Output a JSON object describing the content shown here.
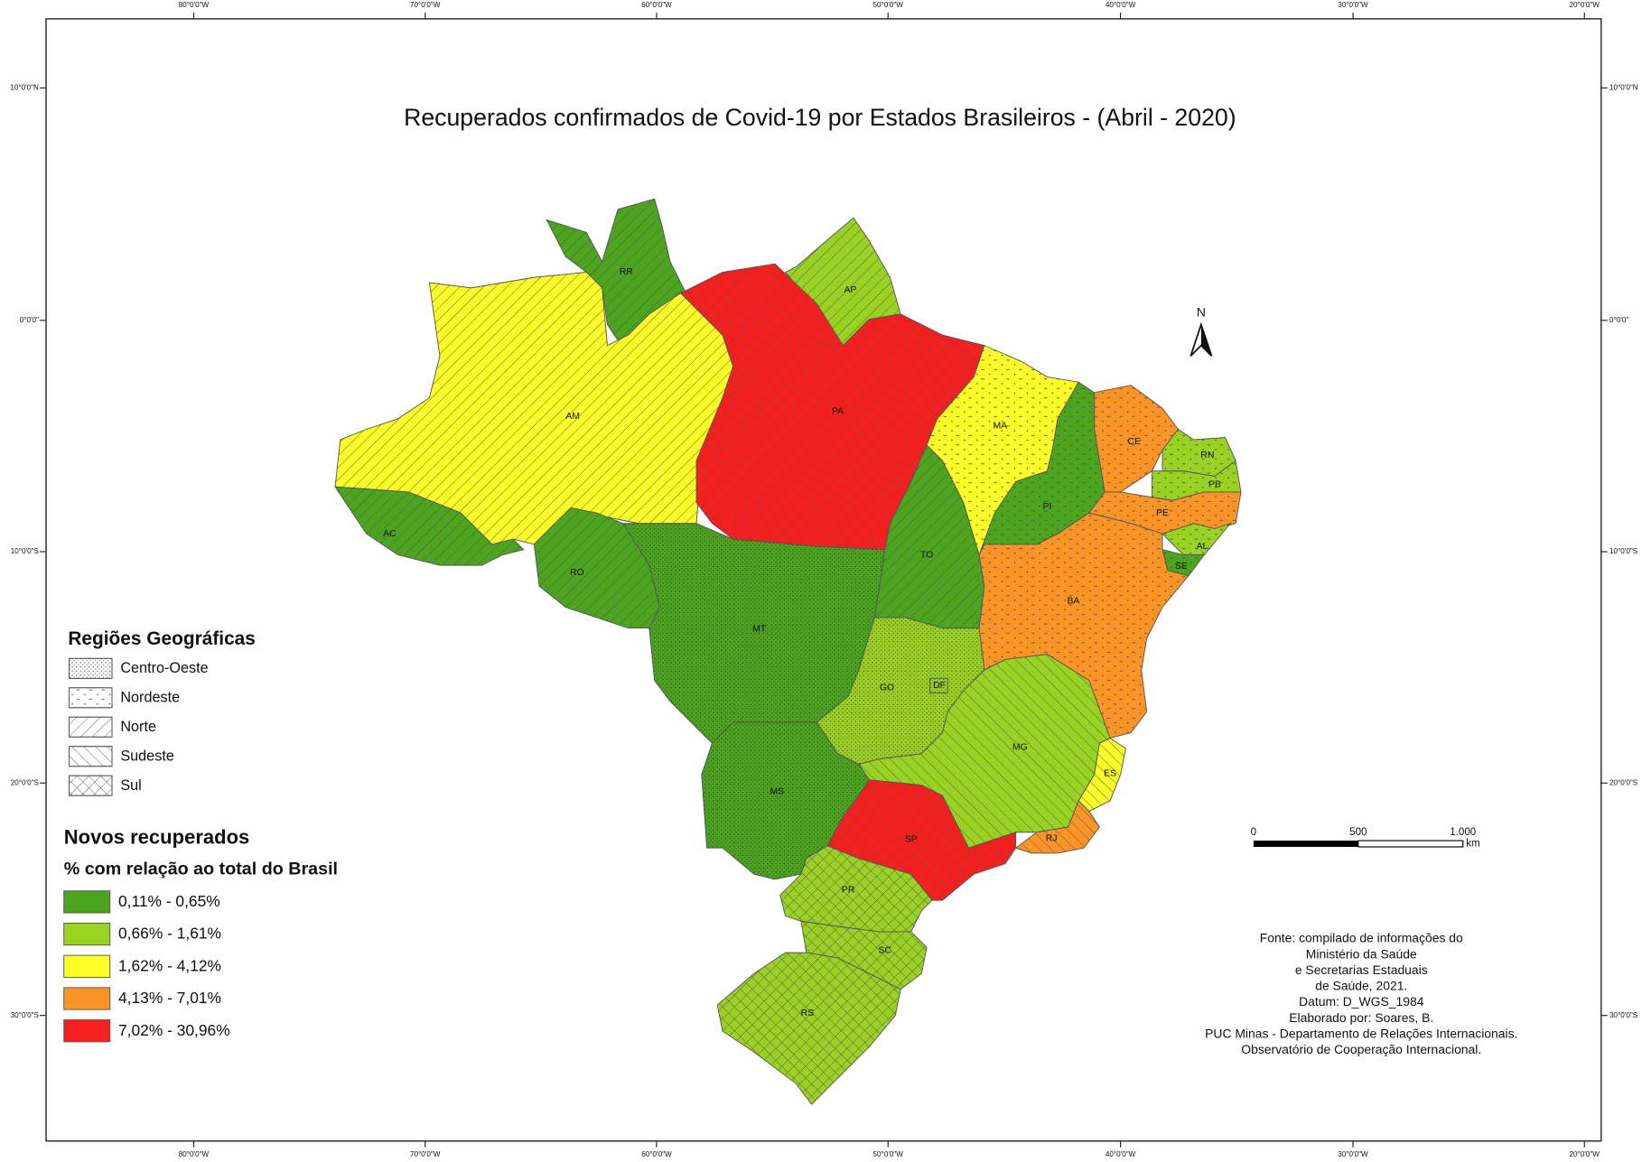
{
  "title": "Recuperados confirmados de Covid-19 por Estados Brasileiros - (Abril - 2020)",
  "graticule": {
    "longitudes": [
      "80°0'0\"W",
      "70°0'0\"W",
      "60°0'0\"W",
      "50°0'0\"W",
      "40°0'0\"W",
      "30°0'0\"W",
      "20°0'0\"W"
    ],
    "latitudes": [
      "10°0'0\"N",
      "0°0'0\"",
      "10°0'0\"S",
      "20°0'0\"S",
      "30°0'0\"S"
    ]
  },
  "north": "N",
  "legend_regions": {
    "title": "Regiões Geográficas",
    "items": [
      "Centro-Oeste",
      "Nordeste",
      "Norte",
      "Sudeste",
      "Sul"
    ]
  },
  "legend_classes": {
    "title": "Novos recuperados",
    "subtitle": "% com relação ao total do Brasil",
    "items": [
      {
        "label": "0,11% - 0,65%",
        "color": "#4ca41f"
      },
      {
        "label": "0,66% - 1,61%",
        "color": "#9ad224"
      },
      {
        "label": "1,62% - 4,12%",
        "color": "#fcfc28"
      },
      {
        "label": "4,13% - 7,01%",
        "color": "#fb9426"
      },
      {
        "label": "7,02% - 30,96%",
        "color": "#f5201e"
      }
    ]
  },
  "scale_bar": {
    "labels": [
      "0",
      "500",
      "1.000"
    ],
    "unit": "km"
  },
  "source": [
    "Fonte: compilado de informações do",
    "Ministério da Saúde",
    "e Secretarias Estaduais",
    "de Saúde, 2021.",
    "Datum: D_WGS_1984",
    "Elaborado por: Soares, B.",
    "PUC Minas - Departamento de Relações Internacionais.",
    "Observatório de Cooperação Internacional."
  ],
  "states": [
    {
      "label": "RR",
      "class": 0,
      "region": 2
    },
    {
      "label": "AP",
      "class": 1,
      "region": 2
    },
    {
      "label": "AM",
      "class": 2,
      "region": 2
    },
    {
      "label": "PA",
      "class": 4,
      "region": 2
    },
    {
      "label": "AC",
      "class": 0,
      "region": 2
    },
    {
      "label": "RO",
      "class": 0,
      "region": 2
    },
    {
      "label": "MT",
      "class": 0,
      "region": 0
    },
    {
      "label": "TO",
      "class": 0,
      "region": 2
    },
    {
      "label": "MA",
      "class": 2,
      "region": 1
    },
    {
      "label": "PI",
      "class": 0,
      "region": 1
    },
    {
      "label": "CE",
      "class": 3,
      "region": 1
    },
    {
      "label": "RN",
      "class": 1,
      "region": 1
    },
    {
      "label": "PB",
      "class": 1,
      "region": 1
    },
    {
      "label": "PE",
      "class": 3,
      "region": 1
    },
    {
      "label": "AL",
      "class": 1,
      "region": 1
    },
    {
      "label": "SE",
      "class": 0,
      "region": 1
    },
    {
      "label": "BA",
      "class": 3,
      "region": 1
    },
    {
      "label": "GO",
      "class": 1,
      "region": 0
    },
    {
      "label": "DF",
      "class": 1,
      "region": 0
    },
    {
      "label": "MG",
      "class": 1,
      "region": 3
    },
    {
      "label": "ES",
      "class": 2,
      "region": 3
    },
    {
      "label": "RJ",
      "class": 3,
      "region": 3
    },
    {
      "label": "SP",
      "class": 4,
      "region": 3
    },
    {
      "label": "MS",
      "class": 0,
      "region": 0
    },
    {
      "label": "PR",
      "class": 1,
      "region": 4
    },
    {
      "label": "SC",
      "class": 1,
      "region": 4
    },
    {
      "label": "RS",
      "class": 1,
      "region": 4
    }
  ]
}
